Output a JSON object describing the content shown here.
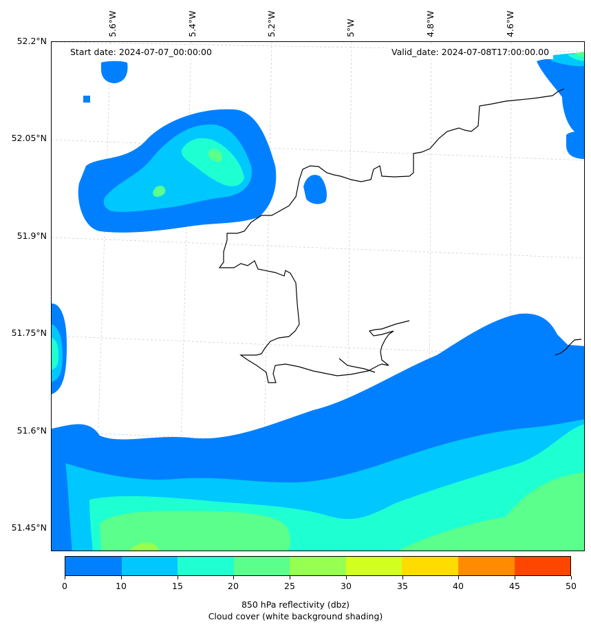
{
  "header": {
    "start_date": "Start date: 2024-07-07_00:00:00",
    "valid_date": "Valid_date: 2024-07-08T17:00:00.00"
  },
  "axes": {
    "lat_labels": [
      "52.2°N",
      "52.05°N",
      "51.9°N",
      "51.75°N",
      "51.6°N",
      "51.45°N"
    ],
    "lon_labels": [
      "5.6°W",
      "5.4°W",
      "5.2°W",
      "5°W",
      "4.8°W",
      "4.6°W"
    ]
  },
  "colorbar": {
    "ticks": [
      "0",
      "10",
      "15",
      "20",
      "25",
      "30",
      "35",
      "40",
      "45",
      "50"
    ],
    "colors": [
      "#0080ff",
      "#00c8ff",
      "#1effd2",
      "#5aff8c",
      "#96ff50",
      "#d2ff1e",
      "#ffdc00",
      "#ff8c00",
      "#ff4600"
    ],
    "caption_line1": "850 hPa reflectivity (dbz)",
    "caption_line2": "Cloud cover (white background shading)"
  }
}
